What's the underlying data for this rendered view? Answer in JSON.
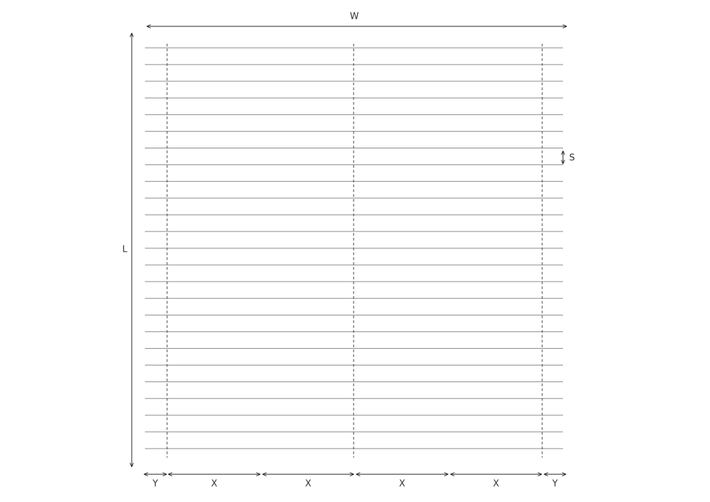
{
  "dimensions": {
    "width": "W",
    "length": "L",
    "spacing": "S"
  },
  "bottom_segments": [
    "Y",
    "X",
    "X",
    "X",
    "X",
    "Y"
  ]
}
